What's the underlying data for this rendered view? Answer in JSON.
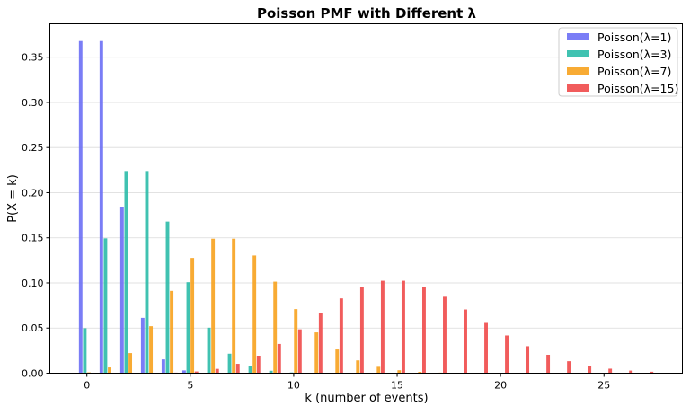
{
  "chart_data": {
    "type": "bar",
    "title": "Poisson PMF with Different λ",
    "xlabel": "k (number of events)",
    "ylabel": "P(X = k)",
    "xlim": [
      -1.79,
      28.79
    ],
    "ylim": [
      0,
      0.387
    ],
    "xticks": [
      0,
      5,
      10,
      15,
      20,
      25
    ],
    "yticks": [
      0.0,
      0.05,
      0.1,
      0.15,
      0.2,
      0.25,
      0.3,
      0.35
    ],
    "ytick_labels": [
      "0.00",
      "0.05",
      "0.10",
      "0.15",
      "0.20",
      "0.25",
      "0.30",
      "0.35"
    ],
    "grid": "horizontal",
    "legend_position": "top-right",
    "categories": [
      0,
      1,
      2,
      3,
      4,
      5,
      6,
      7,
      8,
      9,
      10,
      11,
      12,
      13,
      14,
      15,
      16,
      17,
      18,
      19,
      20,
      21,
      22,
      23,
      24,
      25,
      26,
      27
    ],
    "series": [
      {
        "name": "Poisson(λ=1)",
        "color": "#6b6ff5",
        "values": [
          0.3679,
          0.3679,
          0.1839,
          0.0613,
          0.0153,
          0.0031,
          0.0005,
          0.0001,
          0,
          0,
          0,
          0,
          0,
          0,
          0,
          0,
          0,
          0,
          0,
          0,
          0,
          0,
          0,
          0,
          0,
          0,
          0,
          0
        ]
      },
      {
        "name": "Poisson(λ=3)",
        "color": "#2bbba8",
        "values": [
          0.0498,
          0.1494,
          0.224,
          0.224,
          0.168,
          0.1008,
          0.0504,
          0.0216,
          0.0081,
          0.0027,
          0.0008,
          0.0002,
          0.0001,
          0,
          0,
          0,
          0,
          0,
          0,
          0,
          0,
          0,
          0,
          0,
          0,
          0,
          0,
          0
        ]
      },
      {
        "name": "Poisson(λ=7)",
        "color": "#f7a21e",
        "values": [
          0.0009,
          0.0064,
          0.0223,
          0.0521,
          0.0912,
          0.1277,
          0.149,
          0.149,
          0.1304,
          0.1014,
          0.071,
          0.0452,
          0.0263,
          0.0142,
          0.0071,
          0.0033,
          0.0015,
          0.0006,
          0.0002,
          0.0001,
          0,
          0,
          0,
          0,
          0,
          0,
          0,
          0
        ]
      },
      {
        "name": "Poisson(λ=15)",
        "color": "#ef4a4a",
        "values": [
          0,
          0,
          0,
          0.0002,
          0.0006,
          0.0019,
          0.0048,
          0.0104,
          0.0194,
          0.0324,
          0.0486,
          0.0663,
          0.0829,
          0.0956,
          0.1024,
          0.1024,
          0.096,
          0.0847,
          0.0706,
          0.0557,
          0.0418,
          0.0299,
          0.0204,
          0.0133,
          0.0083,
          0.005,
          0.0029,
          0.0016
        ]
      }
    ]
  }
}
